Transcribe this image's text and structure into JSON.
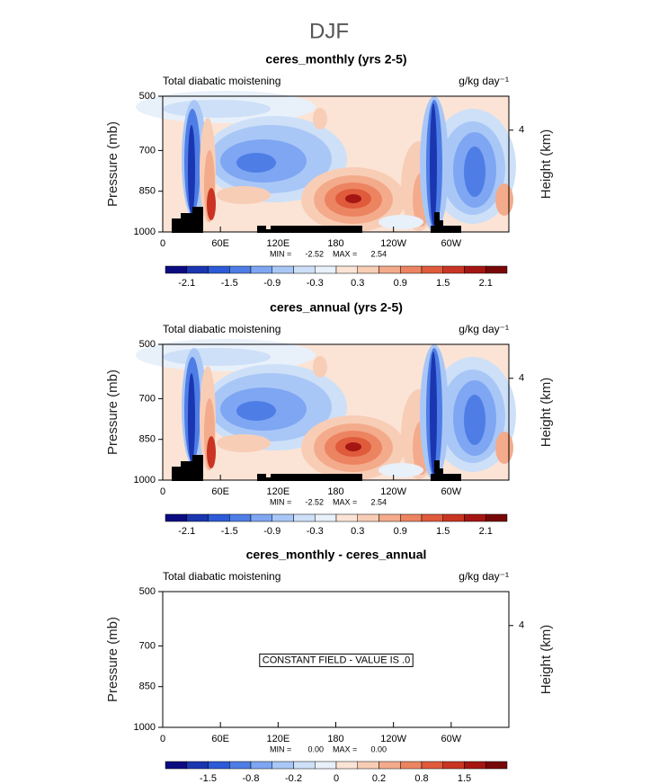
{
  "title": "DJF",
  "chart_data": [
    {
      "type": "contour",
      "title": "ceres_monthly (yrs 2-5)",
      "subtitle": "Total diabatic moistening",
      "units": "g/kg day⁻¹",
      "ylabel": "Pressure (mb)",
      "y2label": "Height (km)",
      "xlim": [
        0,
        360
      ],
      "xticks": [
        0,
        {
          "value": 60,
          "label": "60E"
        },
        {
          "value": 120,
          "label": "120E"
        },
        180,
        {
          "value": 240,
          "label": "120W"
        },
        {
          "value": 300,
          "label": "60W"
        }
      ],
      "ylim": [
        500,
        1000
      ],
      "yticks": [
        500,
        700,
        850,
        1000
      ],
      "y2lim": [
        5.3,
        0.1
      ],
      "y2ticks": [
        4
      ],
      "stats": {
        "labels": [
          "MIN =",
          "MAX ="
        ],
        "values": [
          -2.52,
          2.54
        ]
      },
      "colorbar": {
        "colors": [
          "#0b0c80",
          "#1a36b0",
          "#2d5ad6",
          "#4f7de6",
          "#7ea6f2",
          "#a9c7f6",
          "#cde0f8",
          "#e8f0fa",
          "#fbe4d6",
          "#f8cdb6",
          "#f3ab8b",
          "#ec8461",
          "#e05a3c",
          "#c93522",
          "#a51612",
          "#780808"
        ],
        "ticks": [
          -2.1,
          -1.5,
          -0.9,
          -0.3,
          0.3,
          0.9,
          1.5,
          2.1
        ]
      }
    },
    {
      "type": "contour",
      "title": "ceres_annual (yrs 2-5)",
      "subtitle": "Total diabatic moistening",
      "units": "g/kg day⁻¹",
      "ylabel": "Pressure (mb)",
      "y2label": "Height (km)",
      "xlim": [
        0,
        360
      ],
      "xticks": [
        0,
        {
          "value": 60,
          "label": "60E"
        },
        {
          "value": 120,
          "label": "120E"
        },
        180,
        {
          "value": 240,
          "label": "120W"
        },
        {
          "value": 300,
          "label": "60W"
        }
      ],
      "ylim": [
        500,
        1000
      ],
      "yticks": [
        500,
        700,
        850,
        1000
      ],
      "y2lim": [
        5.3,
        0.1
      ],
      "y2ticks": [
        4
      ],
      "stats": {
        "labels": [
          "MIN =",
          "MAX ="
        ],
        "values": [
          -2.52,
          2.54
        ]
      },
      "colorbar": {
        "colors": [
          "#0b0c80",
          "#1a36b0",
          "#2d5ad6",
          "#4f7de6",
          "#7ea6f2",
          "#a9c7f6",
          "#cde0f8",
          "#e8f0fa",
          "#fbe4d6",
          "#f8cdb6",
          "#f3ab8b",
          "#ec8461",
          "#e05a3c",
          "#c93522",
          "#a51612",
          "#780808"
        ],
        "ticks": [
          -2.1,
          -1.5,
          -0.9,
          -0.3,
          0.3,
          0.9,
          1.5,
          2.1
        ]
      }
    },
    {
      "type": "contour",
      "title": "ceres_monthly - ceres_annual",
      "subtitle": "Total diabatic moistening",
      "units": "g/kg day⁻¹",
      "ylabel": "Pressure (mb)",
      "y2label": "Height (km)",
      "xlim": [
        0,
        360
      ],
      "xticks": [
        0,
        {
          "value": 60,
          "label": "60E"
        },
        {
          "value": 120,
          "label": "120E"
        },
        180,
        {
          "value": 240,
          "label": "120W"
        },
        {
          "value": 300,
          "label": "60W"
        }
      ],
      "ylim": [
        500,
        1000
      ],
      "yticks": [
        500,
        700,
        850,
        1000
      ],
      "y2lim": [
        5.3,
        0.1
      ],
      "y2ticks": [
        4
      ],
      "annotation": "CONSTANT FIELD - VALUE IS .0",
      "stats": {
        "labels": [
          "MIN =",
          "MAX ="
        ],
        "values": [
          0,
          0
        ],
        "value_labels": [
          "0.00",
          "0.00"
        ]
      },
      "colorbar": {
        "colors": [
          "#0b0c80",
          "#1a36b0",
          "#2d5ad6",
          "#4f7de6",
          "#7ea6f2",
          "#a9c7f6",
          "#cde0f8",
          "#e8f0fa",
          "#fbe4d6",
          "#f8cdb6",
          "#f3ab8b",
          "#ec8461",
          "#e05a3c",
          "#c93522",
          "#a51612",
          "#780808"
        ],
        "ticks": [
          -1.5,
          -0.8,
          -0.2,
          0,
          0.2,
          0.8,
          1.5
        ]
      }
    }
  ]
}
